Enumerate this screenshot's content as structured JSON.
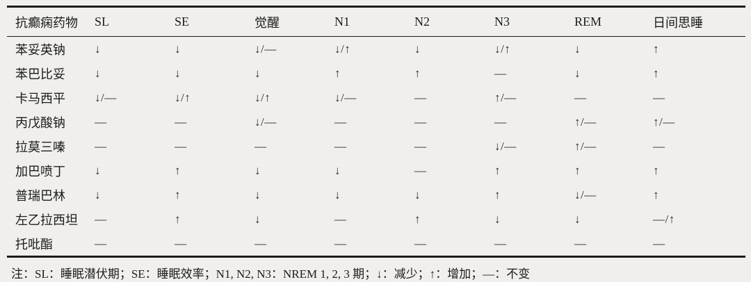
{
  "table": {
    "columns": [
      "抗癫痫药物",
      "SL",
      "SE",
      "觉醒",
      "N1",
      "N2",
      "N3",
      "REM",
      "日间思睡"
    ],
    "rows": [
      {
        "drug": "苯妥英钠",
        "values": [
          "↓",
          "↓",
          "↓/—",
          "↓/↑",
          "↓",
          "↓/↑",
          "↓",
          "↑"
        ]
      },
      {
        "drug": "苯巴比妥",
        "values": [
          "↓",
          "↓",
          "↓",
          "↑",
          "↑",
          "—",
          "↓",
          "↑"
        ]
      },
      {
        "drug": "卡马西平",
        "values": [
          "↓/—",
          "↓/↑",
          "↓/↑",
          "↓/—",
          "—",
          "↑/—",
          "—",
          "—"
        ]
      },
      {
        "drug": "丙戊酸钠",
        "values": [
          "—",
          "—",
          "↓/—",
          "—",
          "—",
          "—",
          "↑/—",
          "↑/—"
        ]
      },
      {
        "drug": "拉莫三嗪",
        "values": [
          "—",
          "—",
          "—",
          "—",
          "—",
          "↓/—",
          "↑/—",
          "—"
        ]
      },
      {
        "drug": "加巴喷丁",
        "values": [
          "↓",
          "↑",
          "↓",
          "↓",
          "—",
          "↑",
          "↑",
          "↑"
        ]
      },
      {
        "drug": "普瑞巴林",
        "values": [
          "↓",
          "↑",
          "↓",
          "↓",
          "↓",
          "↑",
          "↓/—",
          "↑"
        ]
      },
      {
        "drug": "左乙拉西坦",
        "values": [
          "—",
          "↑",
          "↓",
          "—",
          "↑",
          "↓",
          "↓",
          "—/↑"
        ]
      },
      {
        "drug": "托吡酯",
        "values": [
          "—",
          "—",
          "—",
          "—",
          "—",
          "—",
          "—",
          "—"
        ]
      }
    ],
    "legend": {
      "down_arrow": "↓",
      "up_arrow": "↑",
      "dash": "—"
    }
  },
  "note": "注：SL：睡眠潜伏期；SE：睡眠效率；N1, N2, N3：NREM 1, 2, 3 期；↓：减少；↑：增加；—：不变"
}
